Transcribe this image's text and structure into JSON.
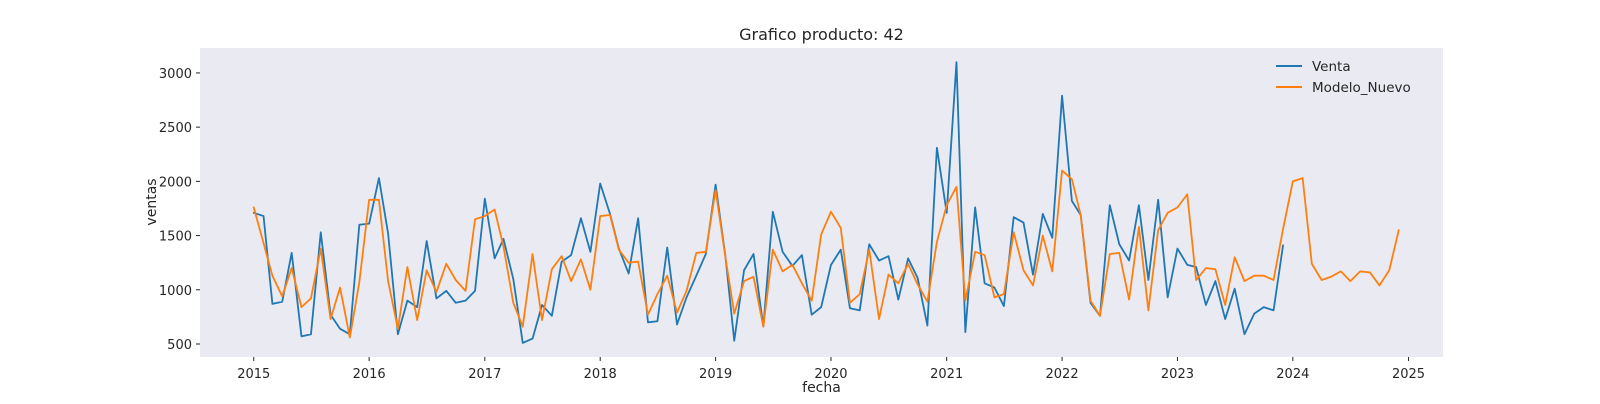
{
  "chart_data": {
    "type": "line",
    "title": "Grafico producto: 42",
    "xlabel": "fecha",
    "ylabel": "ventas",
    "grid": false,
    "legend_position": "top-right",
    "xlim": [
      "2014-07-15",
      "2025-04-20"
    ],
    "ylim": [
      380,
      3230
    ],
    "x_ticks": [
      "2015",
      "2016",
      "2017",
      "2018",
      "2019",
      "2020",
      "2021",
      "2022",
      "2023",
      "2024",
      "2025"
    ],
    "y_ticks": [
      500,
      1000,
      1500,
      2000,
      2500,
      3000
    ],
    "plot_background": "#eaeaf2",
    "series": [
      {
        "name": "Venta",
        "color": "#1f77b4",
        "start": "2015-01",
        "values": [
          1710,
          1680,
          870,
          890,
          1340,
          570,
          590,
          1530,
          770,
          640,
          590,
          1600,
          1610,
          2030,
          1520,
          590,
          900,
          840,
          1450,
          920,
          990,
          880,
          900,
          990,
          1840,
          1290,
          1470,
          1100,
          510,
          550,
          860,
          760,
          1260,
          1320,
          1660,
          1350,
          1980,
          1700,
          1380,
          1150,
          1660,
          700,
          710,
          1390,
          680,
          930,
          1130,
          1330,
          1970,
          1310,
          530,
          1180,
          1330,
          660,
          1720,
          1350,
          1220,
          1320,
          770,
          840,
          1230,
          1370,
          830,
          810,
          1420,
          1270,
          1310,
          910,
          1290,
          1110,
          670,
          2310,
          1710,
          3100,
          610,
          1760,
          1060,
          1020,
          850,
          1670,
          1620,
          1140,
          1700,
          1480,
          2790,
          1820,
          1690,
          880,
          760,
          1780,
          1420,
          1270,
          1780,
          1090,
          1830,
          930,
          1380,
          1230,
          1210,
          860,
          1080,
          730,
          1010,
          590,
          780,
          840,
          810,
          1410
        ]
      },
      {
        "name": "Modelo_Nuevo",
        "color": "#ff7f0e",
        "start": "2015-01",
        "values": [
          1760,
          1430,
          1130,
          940,
          1200,
          840,
          920,
          1380,
          730,
          1020,
          560,
          1070,
          1830,
          1830,
          1080,
          640,
          1210,
          720,
          1180,
          980,
          1240,
          1090,
          990,
          1650,
          1680,
          1740,
          1400,
          880,
          660,
          1330,
          720,
          1190,
          1310,
          1080,
          1280,
          1000,
          1680,
          1690,
          1370,
          1250,
          1260,
          770,
          960,
          1130,
          790,
          990,
          1340,
          1350,
          1920,
          1300,
          780,
          1080,
          1120,
          660,
          1370,
          1170,
          1230,
          1060,
          900,
          1510,
          1720,
          1570,
          880,
          960,
          1370,
          730,
          1140,
          1060,
          1240,
          1050,
          890,
          1440,
          1780,
          1950,
          900,
          1350,
          1320,
          930,
          960,
          1530,
          1180,
          1040,
          1500,
          1170,
          2100,
          2020,
          1690,
          900,
          760,
          1330,
          1340,
          910,
          1580,
          810,
          1550,
          1710,
          1760,
          1880,
          1090,
          1200,
          1190,
          860,
          1300,
          1080,
          1130,
          1130,
          1090,
          1560,
          2000,
          2030,
          1240,
          1090,
          1120,
          1170,
          1080,
          1170,
          1160,
          1040,
          1180,
          1550
        ]
      }
    ]
  }
}
